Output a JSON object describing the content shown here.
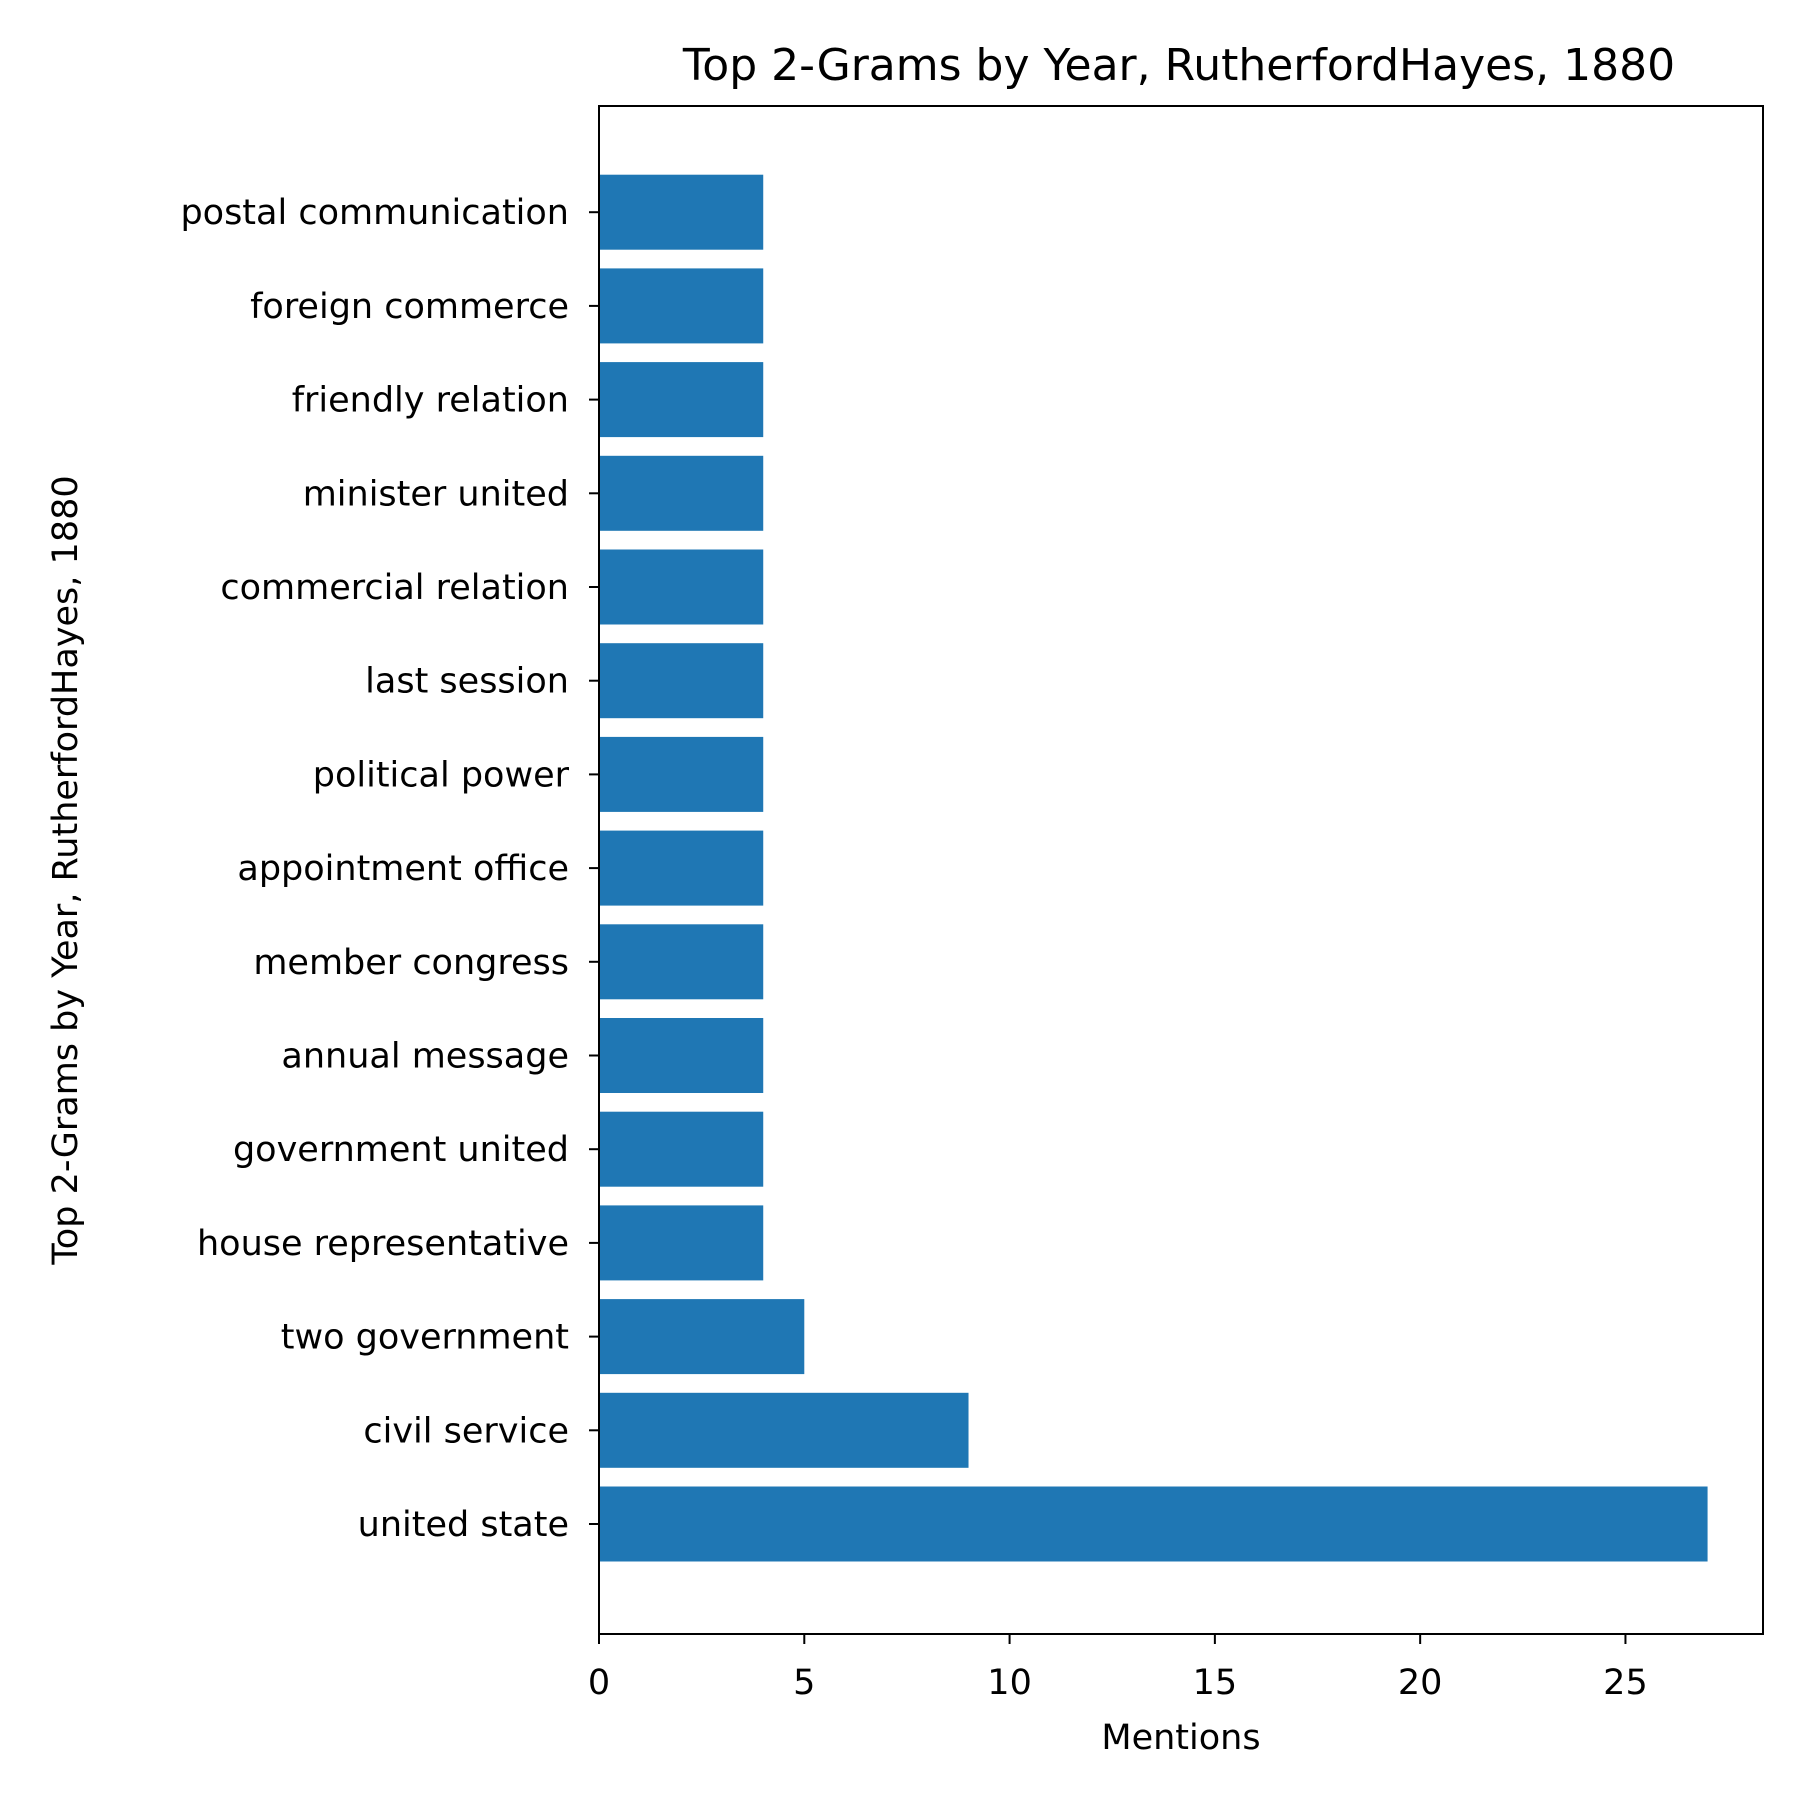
{
  "chart_data": {
    "type": "bar",
    "orientation": "horizontal",
    "title": "Top 2-Grams by Year, RutherfordHayes, 1880",
    "xlabel": "Mentions",
    "ylabel": "Top 2-Grams by Year, RutherfordHayes, 1880",
    "categories": [
      "united state",
      "civil service",
      "two government",
      "house representative",
      "government united",
      "annual message",
      "member congress",
      "appointment office",
      "political power",
      "last session",
      "commercial relation",
      "minister united",
      "friendly relation",
      "foreign commerce",
      "postal communication"
    ],
    "values": [
      27,
      9,
      5,
      4,
      4,
      4,
      4,
      4,
      4,
      4,
      4,
      4,
      4,
      4,
      4
    ],
    "xlim": [
      0,
      28.35
    ],
    "xticks": [
      0,
      5,
      10,
      15,
      20,
      25
    ],
    "grid": false,
    "bar_color": "#1f77b4"
  }
}
